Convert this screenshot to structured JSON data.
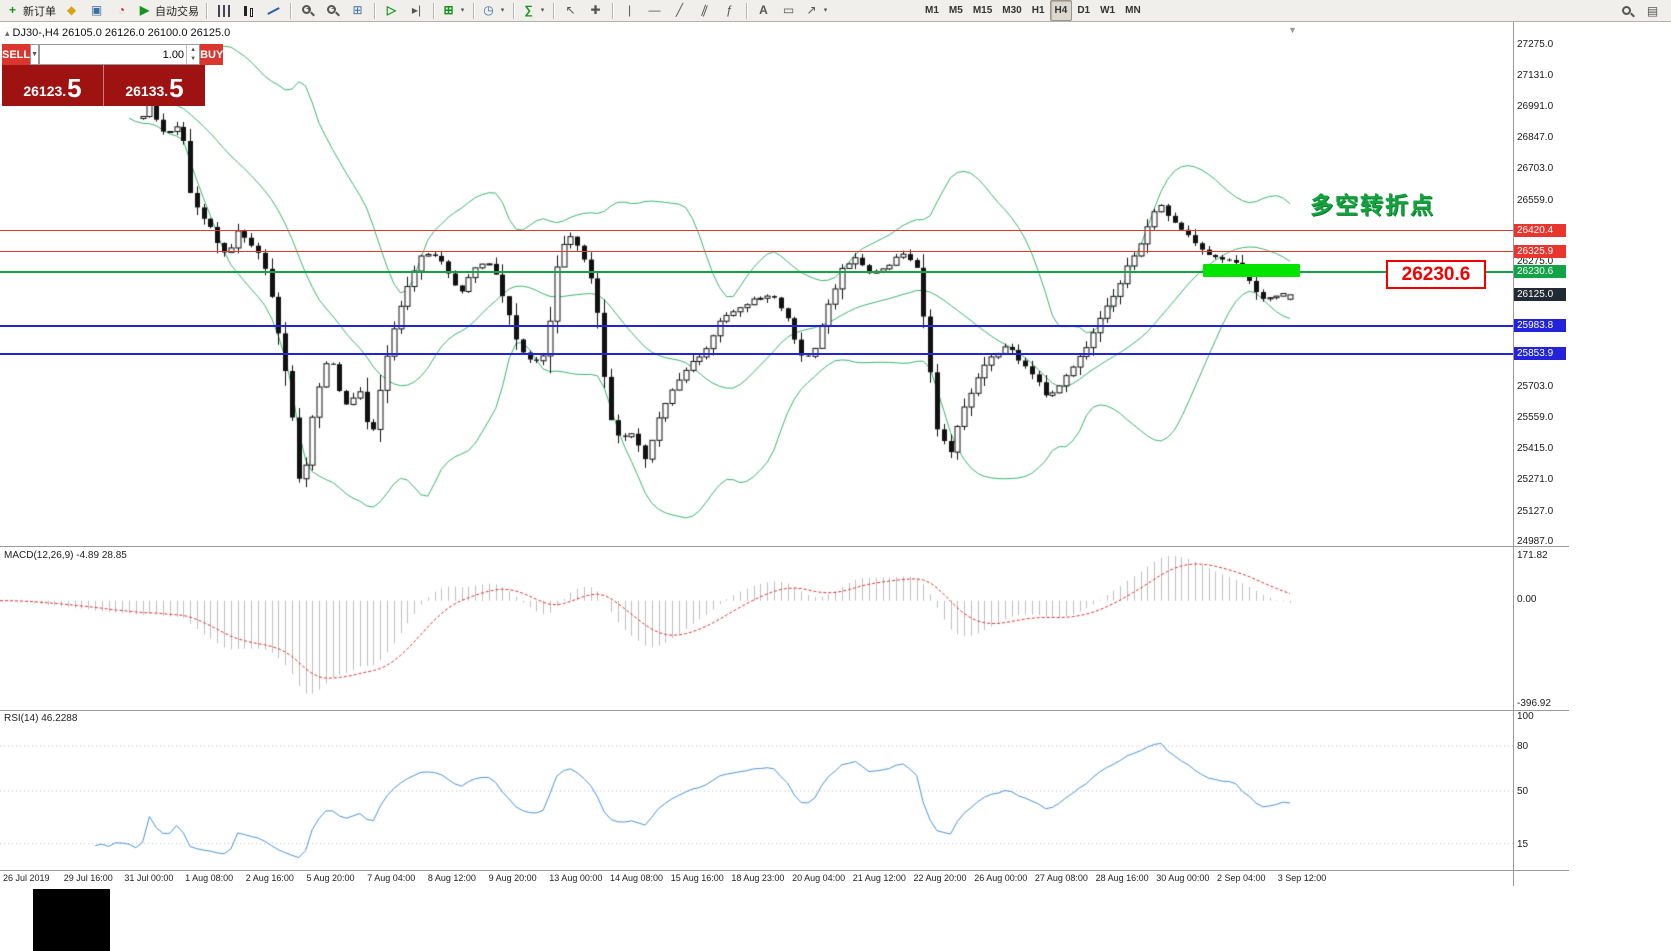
{
  "toolbar": {
    "new_order": "新订单",
    "autotrading": "自动交易",
    "timeframes": [
      "M1",
      "M5",
      "M15",
      "M30",
      "H1",
      "H4",
      "D1",
      "W1",
      "MN"
    ],
    "active_timeframe": "H4",
    "buttons": [
      "new-order",
      "quick-trade",
      "market-watch",
      "refresh",
      "autotrading",
      "bars",
      "candles",
      "line-chart",
      "zoom-in",
      "zoom-out",
      "tile-windows",
      "auto-scroll",
      "chart-shift",
      "new-chart",
      "clock",
      "indicators",
      "cursor",
      "crosshair",
      "vertical-line",
      "horizontal-line",
      "trendline",
      "channel",
      "fibonacci",
      "text",
      "arrows",
      "search",
      "settings"
    ]
  },
  "chart_header": {
    "symbol_line": "DJ30-,H4  26105.0 26126.0 26100.0 26125.0"
  },
  "trade_panel": {
    "sell_label": "SELL",
    "buy_label": "BUY",
    "volume": "1.00",
    "sell_price": "26123.",
    "sell_price_big": "5",
    "buy_price": "26133.",
    "buy_price_big": "5"
  },
  "annotation": {
    "text": "多空转折点"
  },
  "big_price_label": "26230.6",
  "price_axis": {
    "ticks": [
      "27275.0",
      "27131.0",
      "26991.0",
      "26847.0",
      "26703.0",
      "26559.0",
      "26275.0",
      "25703.0",
      "25559.0",
      "25415.0",
      "25271.0",
      "25127.0",
      "24987.0"
    ],
    "level_labels": [
      {
        "value": "26420.4",
        "kind": "red"
      },
      {
        "value": "26325.9",
        "kind": "red"
      },
      {
        "value": "26230.6",
        "kind": "green"
      },
      {
        "value": "26125.0",
        "kind": "current"
      },
      {
        "value": "25983.8",
        "kind": "blue"
      },
      {
        "value": "25853.9",
        "kind": "blue"
      }
    ]
  },
  "macd_panel": {
    "label": "MACD(12,26,9) -4.89 28.85",
    "scale_top": "171.82",
    "scale_zero": "0.00",
    "scale_bottom": "-396.92"
  },
  "rsi_panel": {
    "label": "RSI(14) 46.2288",
    "scale": [
      "100",
      "80",
      "50",
      "15"
    ],
    "levels": [
      80,
      50,
      15
    ]
  },
  "time_axis": [
    "26 Jul 2019",
    "29 Jul 16:00",
    "31 Jul 00:00",
    "1 Aug 08:00",
    "2 Aug 16:00",
    "5 Aug 20:00",
    "7 Aug 04:00",
    "8 Aug 12:00",
    "9 Aug 20:00",
    "13 Aug 00:00",
    "14 Aug 08:00",
    "15 Aug 16:00",
    "18 Aug 23:00",
    "20 Aug 04:00",
    "21 Aug 12:00",
    "22 Aug 20:00",
    "26 Aug 00:00",
    "27 Aug 08:00",
    "28 Aug 16:00",
    "30 Aug 00:00",
    "2 Sep 04:00",
    "3 Sep 12:00"
  ],
  "colors": {
    "red_level": "#e8352e",
    "green_level": "#12a347",
    "blue_level": "#2323d9",
    "current_label_bg": "#222b33",
    "bollinger": "#3cb371",
    "macd_hist": "#bfbfbf",
    "macd_signal": "#e03131",
    "rsi_line": "#4a94d8",
    "highlight": "#00e400",
    "sell_buy_button": "#d8362e",
    "price_panel_bg": "#9e1212"
  },
  "chart_data": {
    "type": "candlestick",
    "symbol": "DJ30-",
    "timeframe": "H4",
    "last_ohlc": {
      "open": 26105.0,
      "high": 26126.0,
      "low": 26100.0,
      "close": 26125.0
    },
    "levels": {
      "red": [
        26420.4,
        26325.9
      ],
      "green": [
        26230.6
      ],
      "blue": [
        25983.8,
        25853.9
      ],
      "current": 26125.0
    },
    "price_range_visible": [
      24969,
      27381
    ],
    "indicators": {
      "bollinger": {
        "period": 20,
        "deviation": 2
      },
      "macd": {
        "fast": 12,
        "slow": 26,
        "signal": 9,
        "value": -4.89,
        "signal_value": 28.85,
        "scale_max": 171.82,
        "scale_min": -396.92
      },
      "rsi": {
        "period": 14,
        "value": 46.2288
      }
    },
    "price_path": [
      [
        0.0,
        26950
      ],
      [
        0.006,
        26995
      ],
      [
        0.018,
        26870
      ],
      [
        0.034,
        26910
      ],
      [
        0.042,
        26560
      ],
      [
        0.055,
        26470
      ],
      [
        0.072,
        26300
      ],
      [
        0.084,
        26420
      ],
      [
        0.098,
        26340
      ],
      [
        0.108,
        26240
      ],
      [
        0.118,
        25960
      ],
      [
        0.128,
        25650
      ],
      [
        0.138,
        25190
      ],
      [
        0.15,
        25640
      ],
      [
        0.163,
        25850
      ],
      [
        0.176,
        25600
      ],
      [
        0.189,
        25690
      ],
      [
        0.199,
        25450
      ],
      [
        0.214,
        25880
      ],
      [
        0.23,
        26160
      ],
      [
        0.245,
        26320
      ],
      [
        0.262,
        26280
      ],
      [
        0.276,
        26130
      ],
      [
        0.289,
        26240
      ],
      [
        0.304,
        26280
      ],
      [
        0.317,
        26060
      ],
      [
        0.328,
        25890
      ],
      [
        0.341,
        25810
      ],
      [
        0.352,
        25870
      ],
      [
        0.363,
        26340
      ],
      [
        0.374,
        26390
      ],
      [
        0.385,
        26290
      ],
      [
        0.395,
        26110
      ],
      [
        0.406,
        25570
      ],
      [
        0.416,
        25450
      ],
      [
        0.427,
        25480
      ],
      [
        0.438,
        25360
      ],
      [
        0.45,
        25560
      ],
      [
        0.463,
        25700
      ],
      [
        0.476,
        25810
      ],
      [
        0.489,
        25860
      ],
      [
        0.502,
        26000
      ],
      [
        0.518,
        26050
      ],
      [
        0.533,
        26100
      ],
      [
        0.548,
        26120
      ],
      [
        0.562,
        26010
      ],
      [
        0.572,
        25860
      ],
      [
        0.583,
        25830
      ],
      [
        0.596,
        26050
      ],
      [
        0.609,
        26240
      ],
      [
        0.622,
        26300
      ],
      [
        0.635,
        26210
      ],
      [
        0.649,
        26260
      ],
      [
        0.663,
        26310
      ],
      [
        0.675,
        26250
      ],
      [
        0.684,
        25880
      ],
      [
        0.692,
        25520
      ],
      [
        0.703,
        25390
      ],
      [
        0.716,
        25610
      ],
      [
        0.729,
        25760
      ],
      [
        0.742,
        25850
      ],
      [
        0.755,
        25900
      ],
      [
        0.765,
        25810
      ],
      [
        0.777,
        25750
      ],
      [
        0.788,
        25660
      ],
      [
        0.799,
        25710
      ],
      [
        0.812,
        25810
      ],
      [
        0.825,
        25910
      ],
      [
        0.838,
        26050
      ],
      [
        0.849,
        26150
      ],
      [
        0.861,
        26280
      ],
      [
        0.873,
        26400
      ],
      [
        0.884,
        26550
      ],
      [
        0.894,
        26490
      ],
      [
        0.905,
        26430
      ],
      [
        0.916,
        26360
      ],
      [
        0.929,
        26300
      ],
      [
        0.942,
        26285
      ],
      [
        0.955,
        26260
      ],
      [
        0.966,
        26175
      ],
      [
        0.975,
        26095
      ],
      [
        0.983,
        26120
      ],
      [
        1.0,
        26125
      ]
    ]
  }
}
